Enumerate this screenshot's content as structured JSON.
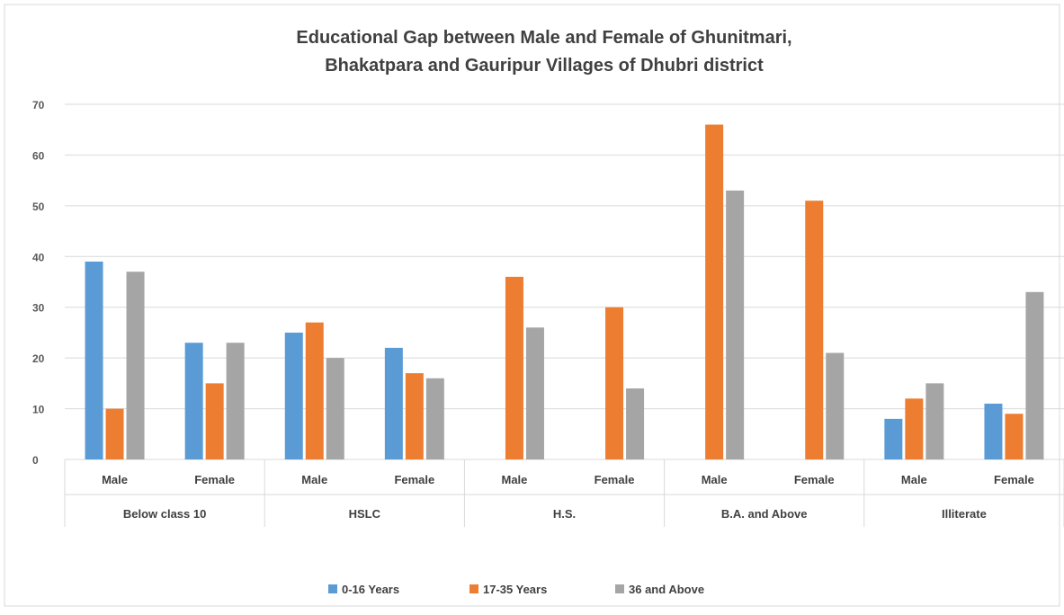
{
  "chart_data": {
    "type": "bar",
    "title_lines": [
      "Educational Gap between Male and Female of Ghunitmari,",
      "Bhakatpara and Gauripur Villages of Dhubri district"
    ],
    "groups": [
      "Below class 10",
      "HSLC",
      "H.S.",
      "B.A. and Above",
      "Illiterate"
    ],
    "subcategories": [
      "Male",
      "Female"
    ],
    "categories": [
      "Male",
      "Female",
      "Male",
      "Female",
      "Male",
      "Female",
      "Male",
      "Female",
      "Male",
      "Female"
    ],
    "series": [
      {
        "name": "0-16 Years",
        "color": "#5B9BD5",
        "values": [
          39,
          23,
          25,
          22,
          0,
          0,
          0,
          0,
          8,
          11
        ]
      },
      {
        "name": "17-35 Years",
        "color": "#ED7D31",
        "values": [
          10,
          15,
          27,
          17,
          36,
          30,
          66,
          51,
          12,
          9
        ]
      },
      {
        "name": "36 and Above",
        "color": "#A5A5A5",
        "values": [
          37,
          23,
          20,
          16,
          26,
          14,
          53,
          21,
          15,
          33
        ]
      }
    ],
    "yticks": [
      "0",
      "10",
      "20",
      "30",
      "40",
      "50",
      "60",
      "70"
    ],
    "ylim": [
      0,
      70
    ],
    "xlabel": "",
    "ylabel": "",
    "grid": true,
    "legend_position": "bottom"
  }
}
